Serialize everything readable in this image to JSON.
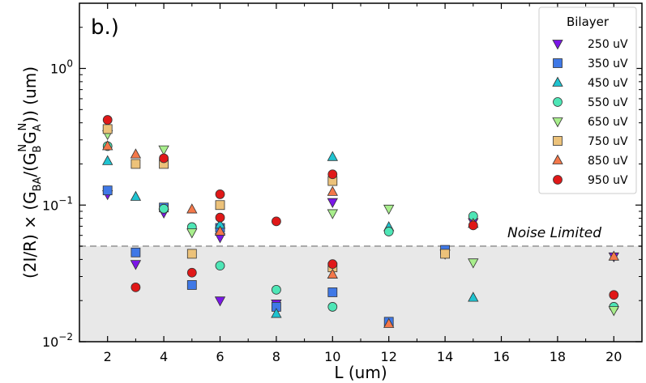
{
  "chart_data": {
    "type": "scatter",
    "panel_label": "b.)",
    "xlabel": "L (um)",
    "ylabel": "(2I/R) × (GBA/(GBNGAN)) (um)",
    "ylabel_parts": {
      "pre": "(2I/R) × (G",
      "ba": "BA",
      "mid": "/(G",
      "b": "B",
      "n1": "N",
      "g2": "G",
      "a": "A",
      "n2": "N",
      "post": ")) (um)"
    },
    "xscale": "linear",
    "yscale": "log",
    "xlim": [
      1,
      21
    ],
    "ylim": [
      0.01,
      3
    ],
    "xticks": [
      2,
      4,
      6,
      8,
      10,
      12,
      14,
      16,
      18,
      20
    ],
    "yticks": [
      {
        "value": 0.01,
        "base": "10",
        "exp": "−2"
      },
      {
        "value": 0.1,
        "base": "10",
        "exp": "−1"
      },
      {
        "value": 1,
        "base": "10",
        "exp": "0"
      }
    ],
    "noise_limit": {
      "value": 0.05,
      "label": "Noise Limited",
      "fill": "#e8e8e8",
      "line": "#aaaaaa"
    },
    "legend": {
      "title": "Bilayer",
      "position": "top-right"
    },
    "series": [
      {
        "name": "250 uV",
        "marker": "triangle-down",
        "color": "#7b16e8",
        "points": [
          [
            2,
            0.12
          ],
          [
            3,
            0.037
          ],
          [
            4,
            0.088
          ],
          [
            6,
            0.058
          ],
          [
            6,
            0.02
          ],
          [
            8,
            0.019
          ],
          [
            10,
            0.105
          ],
          [
            15,
            0.075
          ],
          [
            20,
            0.042
          ]
        ]
      },
      {
        "name": "350 uV",
        "marker": "square",
        "color": "#3f78e6",
        "points": [
          [
            2,
            0.128
          ],
          [
            3,
            0.045
          ],
          [
            4,
            0.096
          ],
          [
            5,
            0.026
          ],
          [
            6,
            0.068
          ],
          [
            8,
            0.018
          ],
          [
            10,
            0.023
          ],
          [
            12,
            0.014
          ],
          [
            14,
            0.047
          ]
        ]
      },
      {
        "name": "450 uV",
        "marker": "triangle-up",
        "color": "#1fc3d0",
        "points": [
          [
            2,
            0.21
          ],
          [
            3,
            0.115
          ],
          [
            6,
            0.072
          ],
          [
            8,
            0.016
          ],
          [
            10,
            0.225
          ],
          [
            12,
            0.069
          ],
          [
            15,
            0.021
          ]
        ]
      },
      {
        "name": "550 uV",
        "marker": "circle",
        "color": "#4ee6b6",
        "points": [
          [
            2,
            0.27
          ],
          [
            4,
            0.094
          ],
          [
            5,
            0.069
          ],
          [
            6,
            0.036
          ],
          [
            8,
            0.024
          ],
          [
            10,
            0.018
          ],
          [
            12,
            0.064
          ],
          [
            15,
            0.083
          ],
          [
            20,
            0.018
          ]
        ]
      },
      {
        "name": "650 uV",
        "marker": "triangle-down",
        "color": "#a8ee8c",
        "points": [
          [
            2,
            0.33
          ],
          [
            4,
            0.255
          ],
          [
            5,
            0.063
          ],
          [
            10,
            0.087
          ],
          [
            12,
            0.094
          ],
          [
            14,
            0.044
          ],
          [
            15,
            0.038
          ],
          [
            20,
            0.017
          ]
        ]
      },
      {
        "name": "750 uV",
        "marker": "square",
        "color": "#ecc27a",
        "points": [
          [
            2,
            0.36
          ],
          [
            3,
            0.2
          ],
          [
            4,
            0.2
          ],
          [
            5,
            0.044
          ],
          [
            6,
            0.1
          ],
          [
            10,
            0.15
          ],
          [
            10,
            0.035
          ],
          [
            14,
            0.044
          ]
        ]
      },
      {
        "name": "850 uV",
        "marker": "triangle-up",
        "color": "#f4784a",
        "points": [
          [
            2,
            0.27
          ],
          [
            3,
            0.235
          ],
          [
            5,
            0.093
          ],
          [
            6,
            0.064
          ],
          [
            10,
            0.125
          ],
          [
            10,
            0.031
          ],
          [
            12,
            0.0135
          ],
          [
            15,
            0.073
          ],
          [
            20,
            0.042
          ]
        ]
      },
      {
        "name": "950 uV",
        "marker": "circle",
        "color": "#e01818",
        "points": [
          [
            2,
            0.42
          ],
          [
            3,
            0.025
          ],
          [
            4,
            0.22
          ],
          [
            5,
            0.032
          ],
          [
            6,
            0.12
          ],
          [
            6,
            0.081
          ],
          [
            8,
            0.076
          ],
          [
            10,
            0.168
          ],
          [
            10,
            0.037
          ],
          [
            15,
            0.071
          ],
          [
            20,
            0.022
          ]
        ]
      }
    ]
  }
}
